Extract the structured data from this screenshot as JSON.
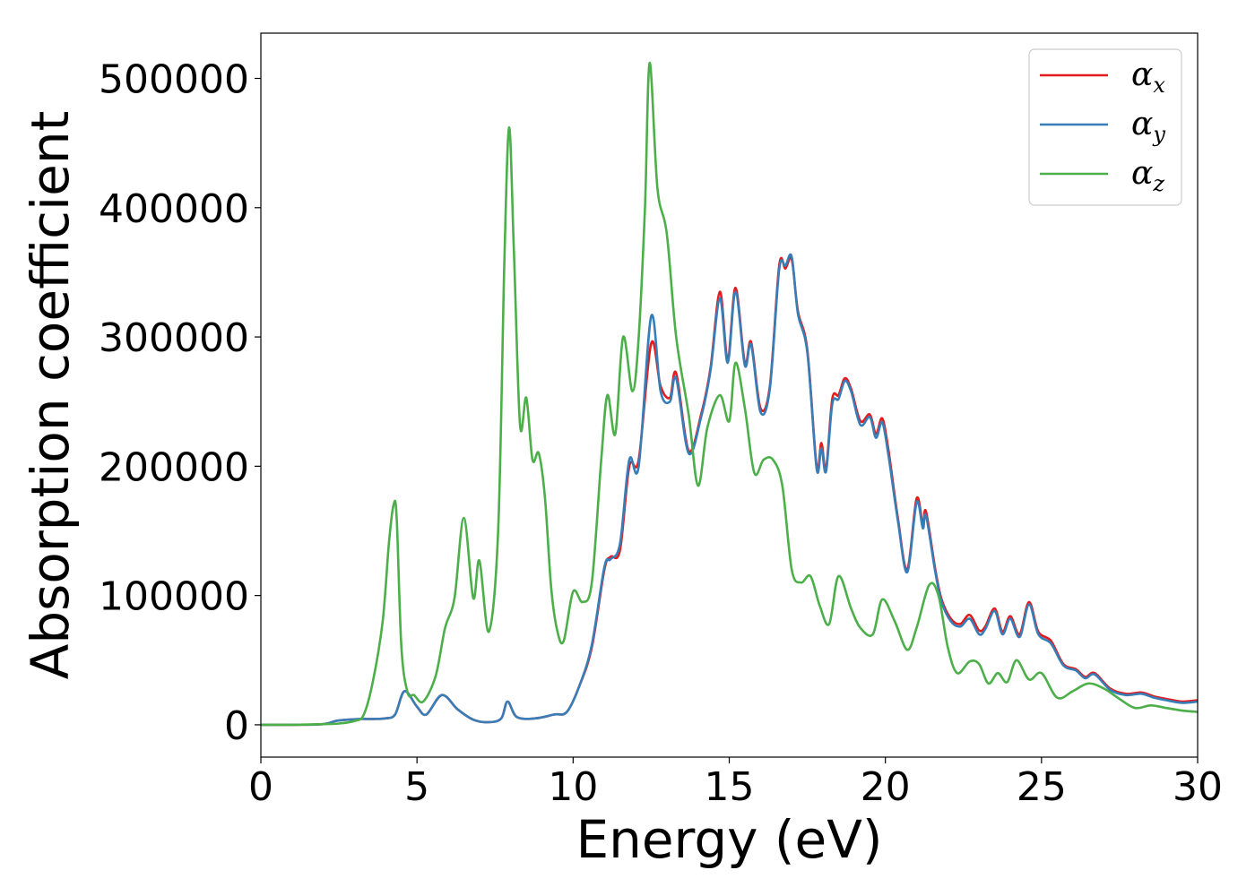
{
  "chart_data": {
    "type": "line",
    "title": "",
    "xlabel": "Energy (eV)",
    "ylabel": "Absorption coefficient",
    "xlim": [
      0,
      30
    ],
    "ylim": [
      -25000,
      535000
    ],
    "xticks": [
      0,
      5,
      10,
      15,
      20,
      25,
      30
    ],
    "yticks": [
      0,
      100000,
      200000,
      300000,
      400000,
      500000
    ],
    "grid": false,
    "legend_position": "top-right",
    "series": [
      {
        "name": "αx",
        "symbol": "α",
        "subscript": "x",
        "color": "#e41a1c",
        "x": [
          0,
          1,
          2,
          2.4,
          2.8,
          3.2,
          3.6,
          4.0,
          4.3,
          4.6,
          5.0,
          5.3,
          5.8,
          6.3,
          6.8,
          7.3,
          7.7,
          7.9,
          8.2,
          8.8,
          9.4,
          9.8,
          10.2,
          10.6,
          11.0,
          11.2,
          11.5,
          11.8,
          12.1,
          12.5,
          12.8,
          13.1,
          13.3,
          13.7,
          14.1,
          14.4,
          14.7,
          14.95,
          15.2,
          15.5,
          15.7,
          16.0,
          16.3,
          16.6,
          16.8,
          17.0,
          17.2,
          17.5,
          17.8,
          17.95,
          18.1,
          18.3,
          18.5,
          18.7,
          18.9,
          19.2,
          19.5,
          19.7,
          19.9,
          20.1,
          20.4,
          20.7,
          21.0,
          21.2,
          21.3,
          21.6,
          21.8,
          22.1,
          22.4,
          22.7,
          23.0,
          23.2,
          23.5,
          23.75,
          24.0,
          24.3,
          24.6,
          24.9,
          25.3,
          25.7,
          26.1,
          26.4,
          26.7,
          27.2,
          27.7,
          28.2,
          28.6,
          29.0,
          29.5,
          30.0
        ],
        "y": [
          0,
          0,
          500,
          3000,
          4000,
          4500,
          4500,
          5000,
          8000,
          26000,
          14000,
          8000,
          23000,
          12000,
          4000,
          2000,
          5000,
          18000,
          6000,
          5000,
          8000,
          10000,
          30000,
          60000,
          120000,
          130000,
          135000,
          200000,
          205000,
          295000,
          262000,
          253000,
          272000,
          212000,
          240000,
          276000,
          335000,
          283000,
          338000,
          280000,
          296000,
          245000,
          262000,
          355000,
          353000,
          360000,
          320000,
          290000,
          200000,
          218000,
          198000,
          252000,
          255000,
          268000,
          260000,
          235000,
          240000,
          225000,
          237000,
          212000,
          160000,
          120000,
          175000,
          155000,
          165000,
          120000,
          97000,
          82000,
          78000,
          85000,
          73000,
          76000,
          90000,
          72000,
          84000,
          70000,
          95000,
          72000,
          65000,
          47000,
          43000,
          37000,
          40000,
          28000,
          24000,
          25000,
          22000,
          20000,
          18000,
          19000
        ]
      },
      {
        "name": "αy",
        "symbol": "α",
        "subscript": "y",
        "color": "#377eb8",
        "x": [
          0,
          1,
          2,
          2.4,
          2.8,
          3.2,
          3.6,
          4.0,
          4.3,
          4.6,
          5.0,
          5.3,
          5.8,
          6.3,
          6.8,
          7.3,
          7.7,
          7.9,
          8.2,
          8.8,
          9.4,
          9.8,
          10.2,
          10.6,
          11.0,
          11.2,
          11.5,
          11.8,
          12.1,
          12.5,
          12.8,
          13.1,
          13.3,
          13.7,
          14.1,
          14.4,
          14.7,
          14.95,
          15.2,
          15.5,
          15.7,
          16.0,
          16.3,
          16.6,
          16.8,
          17.0,
          17.2,
          17.5,
          17.8,
          17.95,
          18.1,
          18.3,
          18.5,
          18.7,
          18.9,
          19.2,
          19.5,
          19.7,
          19.9,
          20.1,
          20.4,
          20.7,
          21.0,
          21.2,
          21.3,
          21.6,
          21.8,
          22.1,
          22.4,
          22.7,
          23.0,
          23.2,
          23.5,
          23.75,
          24.0,
          24.3,
          24.6,
          24.9,
          25.3,
          25.7,
          26.1,
          26.4,
          26.7,
          27.2,
          27.7,
          28.2,
          28.6,
          29.0,
          29.5,
          30.0
        ],
        "y": [
          0,
          0,
          500,
          3000,
          4000,
          4500,
          4500,
          5000,
          8000,
          26000,
          14000,
          8000,
          23000,
          12000,
          4000,
          2000,
          5000,
          18000,
          6000,
          5000,
          8000,
          10000,
          30000,
          62000,
          122000,
          128000,
          140000,
          205000,
          200000,
          316000,
          258000,
          250000,
          268000,
          210000,
          238000,
          274000,
          330000,
          280000,
          335000,
          278000,
          294000,
          242000,
          260000,
          352000,
          355000,
          362000,
          318000,
          288000,
          198000,
          214000,
          196000,
          248000,
          252000,
          266000,
          258000,
          232000,
          238000,
          222000,
          234000,
          208000,
          158000,
          118000,
          172000,
          152000,
          162000,
          118000,
          95000,
          80000,
          76000,
          82000,
          70000,
          74000,
          88000,
          70000,
          82000,
          68000,
          93000,
          70000,
          63000,
          46000,
          42000,
          36000,
          39000,
          27000,
          23000,
          24000,
          21000,
          19000,
          17000,
          18000
        ]
      },
      {
        "name": "αz",
        "symbol": "α",
        "subscript": "z",
        "color": "#4daf4a",
        "x": [
          0,
          1,
          2,
          2.5,
          3.0,
          3.3,
          3.6,
          3.9,
          4.1,
          4.25,
          4.35,
          4.5,
          4.7,
          4.9,
          5.2,
          5.6,
          5.9,
          6.2,
          6.5,
          6.8,
          7.0,
          7.3,
          7.6,
          7.8,
          7.95,
          8.1,
          8.3,
          8.5,
          8.7,
          8.9,
          9.1,
          9.3,
          9.5,
          9.7,
          10.0,
          10.3,
          10.6,
          10.9,
          11.1,
          11.35,
          11.6,
          11.9,
          12.1,
          12.3,
          12.45,
          12.7,
          13.0,
          13.3,
          13.7,
          14.0,
          14.3,
          14.7,
          15.0,
          15.2,
          15.5,
          15.8,
          16.1,
          16.4,
          16.7,
          17.0,
          17.3,
          17.6,
          17.9,
          18.2,
          18.5,
          18.9,
          19.2,
          19.6,
          19.9,
          20.3,
          20.7,
          21.0,
          21.4,
          21.7,
          22.0,
          22.3,
          22.7,
          23.0,
          23.3,
          23.6,
          23.9,
          24.2,
          24.6,
          25.0,
          25.5,
          26.0,
          26.5,
          27.0,
          27.5,
          28.0,
          28.5,
          29.0,
          29.5,
          30.0
        ],
        "y": [
          0,
          0,
          500,
          1000,
          3000,
          8000,
          35000,
          80000,
          140000,
          170000,
          160000,
          60000,
          25000,
          23000,
          18000,
          38000,
          75000,
          98000,
          160000,
          98000,
          127000,
          72000,
          150000,
          360000,
          462000,
          370000,
          232000,
          253000,
          205000,
          210000,
          175000,
          105000,
          72000,
          65000,
          103000,
          95000,
          110000,
          205000,
          255000,
          225000,
          300000,
          258000,
          300000,
          400000,
          512000,
          415000,
          380000,
          300000,
          240000,
          185000,
          230000,
          255000,
          235000,
          280000,
          245000,
          195000,
          205000,
          205000,
          185000,
          120000,
          110000,
          115000,
          92000,
          78000,
          115000,
          90000,
          75000,
          70000,
          97000,
          80000,
          58000,
          75000,
          108000,
          100000,
          60000,
          40000,
          49000,
          47000,
          32000,
          40000,
          33000,
          50000,
          35000,
          40000,
          21000,
          26000,
          32000,
          28000,
          20000,
          13000,
          15000,
          13000,
          11000,
          10000
        ]
      }
    ]
  }
}
